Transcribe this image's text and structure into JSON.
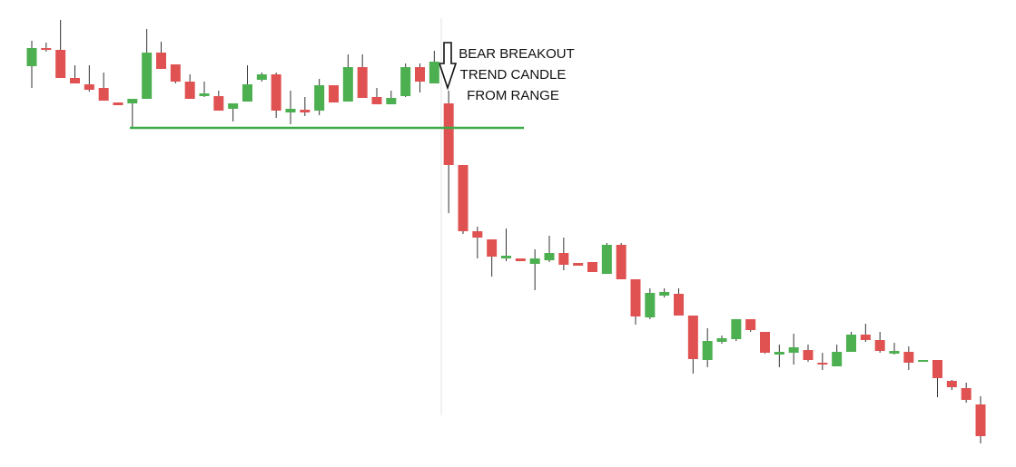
{
  "chart_data": {
    "type": "candlestick",
    "up_color": "#4caf50",
    "down_color": "#e05252",
    "ylim": [
      0,
      500
    ],
    "open": [
      442,
      462,
      460,
      429,
      422,
      418,
      402,
      401,
      406,
      457,
      444,
      425,
      409,
      409,
      395,
      403,
      427,
      433,
      391,
      394,
      393,
      421,
      403,
      441,
      408,
      400,
      409,
      441,
      423,
      401,
      333,
      260,
      251,
      230,
      230,
      224,
      228,
      236,
      225,
      226,
      213,
      245,
      207,
      165,
      189,
      191,
      167,
      118,
      138,
      141,
      163,
      149,
      124,
      126,
      129,
      115,
      111,
      127,
      146,
      140,
      125,
      127,
      116,
      118,
      95,
      87,
      69
    ],
    "high": [
      470,
      468,
      493,
      443,
      443,
      435,
      402,
      406,
      483,
      469,
      444,
      433,
      425,
      415,
      401,
      443,
      435,
      435,
      415,
      408,
      428,
      421,
      455,
      455,
      418,
      415,
      445,
      445,
      459,
      415,
      333,
      265,
      251,
      263,
      230,
      240,
      255,
      253,
      225,
      226,
      247,
      247,
      207,
      197,
      197,
      197,
      167,
      153,
      145,
      163,
      163,
      149,
      135,
      147,
      135,
      126,
      135,
      149,
      158,
      149,
      137,
      133,
      118,
      118,
      96,
      93,
      78
    ],
    "low": [
      418,
      458,
      429,
      423,
      414,
      404,
      399,
      374,
      406,
      439,
      423,
      406,
      408,
      393,
      381,
      403,
      425,
      385,
      378,
      387,
      388,
      402,
      403,
      407,
      400,
      400,
      408,
      413,
      423,
      280,
      257,
      230,
      210,
      227,
      227,
      195,
      226,
      217,
      222,
      215,
      213,
      207,
      157,
      163,
      187,
      167,
      103,
      110,
      136,
      139,
      149,
      125,
      110,
      113,
      116,
      107,
      111,
      127,
      138,
      126,
      124,
      107,
      116,
      77,
      85,
      71,
      26
    ],
    "close": [
      462,
      460,
      429,
      423,
      416,
      404,
      399,
      406,
      457,
      439,
      425,
      406,
      412,
      393,
      401,
      422,
      433,
      393,
      395,
      391,
      421,
      402,
      441,
      407,
      400,
      407,
      441,
      425,
      447,
      333,
      260,
      253,
      232,
      233,
      227,
      230,
      236,
      223,
      222,
      215,
      245,
      207,
      166,
      192,
      193,
      167,
      119,
      139,
      142,
      163,
      151,
      126,
      127,
      132,
      118,
      113,
      127,
      146,
      140,
      128,
      128,
      115,
      118,
      98,
      88,
      74,
      34
    ],
    "support_level": 374,
    "support_color": "#3aaa46",
    "annotation": [
      "BEAR BREAKOUT",
      "TREND CANDLE",
      "FROM RANGE"
    ]
  }
}
